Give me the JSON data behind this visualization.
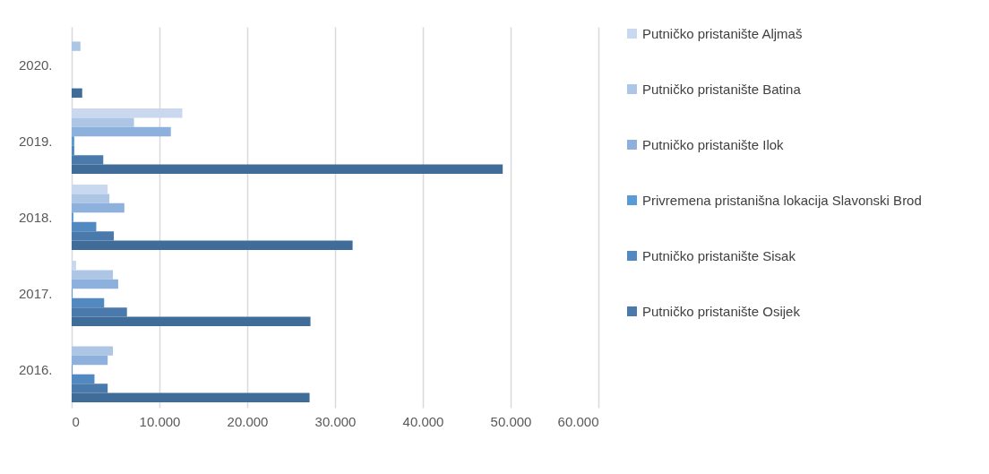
{
  "chart_data": {
    "type": "bar",
    "orientation": "horizontal",
    "categories": [
      "2020.",
      "2019.",
      "2018.",
      "2017.",
      "2016."
    ],
    "series": [
      {
        "name": "Putničko pristanište Aljmaš",
        "color": "#c9d8ee",
        "values": [
          null,
          12600,
          4100,
          500,
          null
        ]
      },
      {
        "name": "Putničko pristanište Batina",
        "color": "#adc6e6",
        "values": [
          1000,
          7100,
          4300,
          4700,
          4700
        ]
      },
      {
        "name": "Putničko pristanište Ilok",
        "color": "#8db1dc",
        "values": [
          null,
          11300,
          6000,
          5300,
          4100
        ]
      },
      {
        "name": "Privremena pristanišna lokacija Slavonski Brod",
        "color": "#5b9bd5",
        "values": [
          null,
          300,
          200,
          100,
          100
        ]
      },
      {
        "name": "Putničko pristanište Sisak",
        "color": "#5189c0",
        "values": [
          null,
          300,
          2800,
          3700,
          2600
        ]
      },
      {
        "name": "Putničko pristanište Osijek",
        "color": "#4a7aab",
        "values": [
          null,
          3600,
          4800,
          6300,
          4100
        ]
      },
      {
        "color": "#3f6c98",
        "values": [
          1200,
          49100,
          32000,
          27200,
          27100
        ]
      }
    ],
    "xlim": [
      0,
      60000
    ],
    "xticks": [
      0,
      {
        "value": 10000,
        "label": "10.000"
      },
      {
        "value": 20000,
        "label": "20.000"
      },
      {
        "value": 30000,
        "label": "30.000"
      },
      {
        "value": 40000,
        "label": "40.000"
      },
      {
        "value": 50000,
        "label": "50.000"
      },
      {
        "value": 60000,
        "label": "60.000"
      }
    ],
    "grid": "x",
    "legend": "right"
  }
}
